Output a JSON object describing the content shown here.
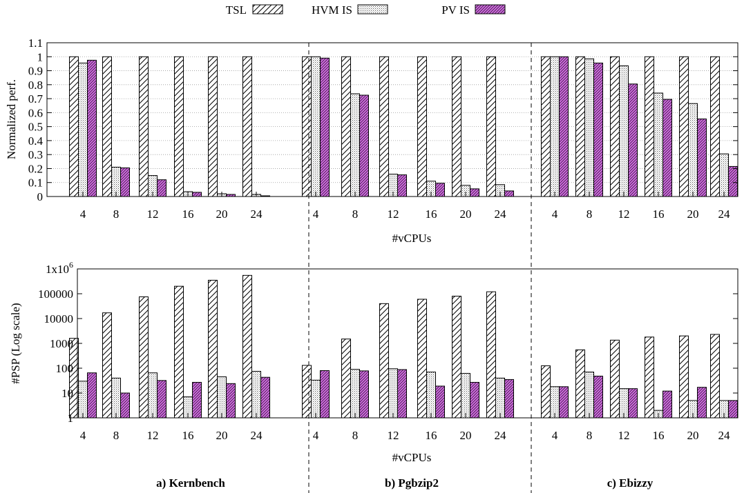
{
  "legend": {
    "placement": "top-center",
    "items": [
      {
        "label": "TSL",
        "pattern": "diag-sparse"
      },
      {
        "label": "HVM IS",
        "pattern": "dots"
      },
      {
        "label": "PV IS",
        "pattern": "diag-purple"
      }
    ]
  },
  "colors": {
    "pv_fill": "#d070e0",
    "stroke": "#000000",
    "grid": "#999999"
  },
  "chart_data": [
    {
      "type": "bar",
      "panel": "normalized-performance",
      "ylabel": "Normalized perf.",
      "xlabel": "#vCPUs",
      "ylim": [
        0,
        1.1
      ],
      "yticks": [
        "0",
        "0.1",
        "0.2",
        "0.3",
        "0.4",
        "0.5",
        "0.6",
        "0.7",
        "0.8",
        "0.9",
        "1",
        "1.1"
      ],
      "grid": true,
      "groups": [
        {
          "name": "a) Kernbench",
          "categories": [
            "4",
            "8",
            "12",
            "16",
            "20",
            "24"
          ],
          "series": [
            {
              "name": "TSL",
              "values": [
                1,
                1,
                1,
                1,
                1,
                1
              ]
            },
            {
              "name": "HVM IS",
              "values": [
                0.955,
                0.21,
                0.15,
                0.035,
                0.02,
                0.015
              ]
            },
            {
              "name": "PV IS",
              "values": [
                0.975,
                0.205,
                0.12,
                0.03,
                0.015,
                0.005
              ]
            }
          ]
        },
        {
          "name": "b) Pgbzip2",
          "categories": [
            "4",
            "8",
            "12",
            "16",
            "20",
            "24"
          ],
          "series": [
            {
              "name": "TSL",
              "values": [
                1,
                1,
                1,
                1,
                1,
                1
              ]
            },
            {
              "name": "HVM IS",
              "values": [
                1.0,
                0.735,
                0.16,
                0.11,
                0.08,
                0.085
              ]
            },
            {
              "name": "PV IS",
              "values": [
                0.99,
                0.725,
                0.155,
                0.095,
                0.055,
                0.04
              ]
            }
          ]
        },
        {
          "name": "c) Ebizzy",
          "categories": [
            "4",
            "8",
            "12",
            "16",
            "20",
            "24"
          ],
          "series": [
            {
              "name": "TSL",
              "values": [
                1,
                1,
                1,
                1,
                1,
                1
              ]
            },
            {
              "name": "HVM IS",
              "values": [
                1.0,
                0.985,
                0.935,
                0.74,
                0.665,
                0.305
              ]
            },
            {
              "name": "PV IS",
              "values": [
                1.0,
                0.955,
                0.805,
                0.695,
                0.555,
                0.215
              ]
            }
          ]
        }
      ]
    },
    {
      "type": "bar",
      "panel": "psp-count",
      "ylabel": "#PSP (Log scale)",
      "xlabel": "#vCPUs",
      "scale": "log",
      "ylim": [
        1,
        1000000
      ],
      "ytick_values": [
        1,
        10,
        100,
        1000,
        10000,
        100000,
        1000000
      ],
      "yticks": [
        "1",
        "10",
        "100",
        "1000",
        "10000",
        "100000",
        "1x10"
      ],
      "ytick_top_exponent": "6",
      "grid": false,
      "groups": [
        {
          "name": "a) Kernbench",
          "categories": [
            "4",
            "8",
            "12",
            "16",
            "20",
            "24"
          ],
          "series": [
            {
              "name": "TSL",
              "values": [
                1600,
                17000,
                75000,
                200000,
                350000,
                550000
              ]
            },
            {
              "name": "HVM IS",
              "values": [
                30,
                40,
                65,
                7,
                45,
                75
              ]
            },
            {
              "name": "PV IS",
              "values": [
                65,
                10,
                32,
                27,
                24,
                43
              ]
            }
          ]
        },
        {
          "name": "b) Pgbzip2",
          "categories": [
            "4",
            "8",
            "12",
            "16",
            "20",
            "24"
          ],
          "series": [
            {
              "name": "TSL",
              "values": [
                130,
                1500,
                40000,
                60000,
                80000,
                120000
              ]
            },
            {
              "name": "HVM IS",
              "values": [
                33,
                90,
                95,
                70,
                62,
                40
              ]
            },
            {
              "name": "PV IS",
              "values": [
                80,
                78,
                88,
                19,
                27,
                35
              ]
            }
          ]
        },
        {
          "name": "c) Ebizzy",
          "categories": [
            "4",
            "8",
            "12",
            "16",
            "20",
            "24"
          ],
          "series": [
            {
              "name": "TSL",
              "values": [
                125,
                550,
                1350,
                1800,
                2000,
                2300
              ]
            },
            {
              "name": "HVM IS",
              "values": [
                18,
                70,
                15,
                2,
                5,
                5
              ]
            },
            {
              "name": "PV IS",
              "values": [
                18,
                48,
                15,
                12,
                17,
                5
              ]
            }
          ]
        }
      ]
    }
  ]
}
